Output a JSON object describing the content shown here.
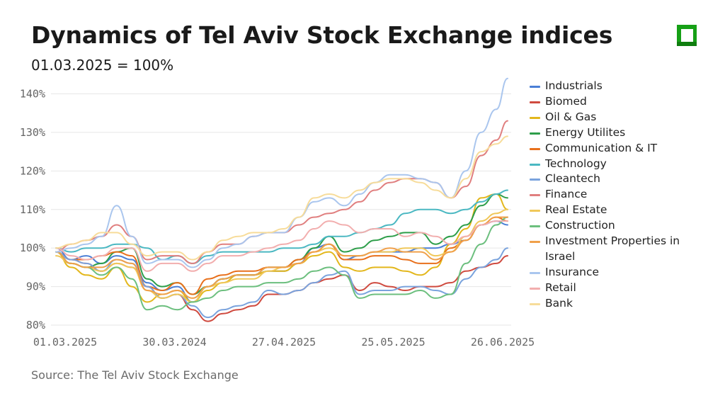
{
  "header": {
    "title": "Dynamics of Tel Aviv Stock Exchange indices",
    "subtitle": "01.03.2025 = 100%"
  },
  "footer": {
    "source": "Source: The Tel Aviv Stock Exchange"
  },
  "colors": {
    "grid": "#e6e6e6",
    "axis_text": "#666666",
    "logo": "#16a016"
  },
  "chart_data": {
    "type": "line",
    "title": "Dynamics of Tel Aviv Stock Exchange indices",
    "subtitle": "01.03.2025 = 100%",
    "xlabel": "",
    "ylabel": "",
    "ylim": [
      80,
      142
    ],
    "yticks": [
      80,
      90,
      100,
      110,
      120,
      130,
      140
    ],
    "ytick_labels": [
      "80%",
      "90%",
      "100%",
      "110%",
      "120%",
      "130%",
      "140%"
    ],
    "xtick_labels": [
      "01.03.2025",
      "30.03.2024",
      "27.04.2025",
      "25.05.2025",
      "26.06.2025"
    ],
    "grid": true,
    "legend_position": "right",
    "x": [
      0,
      4,
      8,
      12,
      16,
      20,
      24,
      28,
      32,
      36,
      40,
      44,
      48,
      52,
      56,
      60,
      64,
      68,
      72,
      76,
      80,
      84,
      88,
      92,
      96,
      100,
      104,
      108,
      112,
      116,
      119
    ],
    "series": [
      {
        "name": "Industrials",
        "color": "#4a7fd6",
        "values": [
          100,
          97,
          98,
          96,
          98,
          97,
          91,
          89,
          90,
          86,
          90,
          92,
          93,
          93,
          94,
          94,
          96,
          100,
          101,
          97,
          98,
          99,
          99,
          99,
          100,
          100,
          101,
          102,
          106,
          107,
          106
        ]
      },
      {
        "name": "Biomed",
        "color": "#cf4a3f",
        "values": [
          99,
          97,
          96,
          94,
          96,
          95,
          90,
          87,
          88,
          84,
          81,
          83,
          84,
          85,
          88,
          88,
          89,
          91,
          92,
          93,
          89,
          91,
          90,
          89,
          90,
          90,
          91,
          94,
          95,
          96,
          98
        ]
      },
      {
        "name": "Oil & Gas",
        "color": "#e3b71c",
        "values": [
          99,
          95,
          93,
          92,
          95,
          90,
          86,
          88,
          89,
          86,
          89,
          91,
          93,
          93,
          94,
          94,
          96,
          98,
          99,
          95,
          94,
          95,
          95,
          94,
          93,
          95,
          101,
          105,
          113,
          114,
          110
        ]
      },
      {
        "name": "Energy Utilites",
        "color": "#2e9e4a",
        "values": [
          99,
          96,
          95,
          96,
          99,
          100,
          92,
          90,
          91,
          88,
          90,
          92,
          93,
          93,
          95,
          95,
          97,
          100,
          103,
          99,
          100,
          102,
          103,
          104,
          104,
          101,
          103,
          106,
          111,
          114,
          113
        ]
      },
      {
        "name": "Communication & IT",
        "color": "#e8701c",
        "values": [
          99,
          97,
          97,
          98,
          99,
          98,
          90,
          89,
          91,
          88,
          92,
          93,
          94,
          94,
          95,
          95,
          97,
          99,
          101,
          97,
          97,
          98,
          98,
          97,
          96,
          96,
          100,
          102,
          106,
          108,
          107
        ]
      },
      {
        "name": "Technology",
        "color": "#4bb8c2",
        "values": [
          100,
          99,
          100,
          100,
          101,
          101,
          100,
          97,
          98,
          96,
          98,
          99,
          99,
          99,
          99,
          100,
          100,
          101,
          103,
          103,
          104,
          105,
          106,
          109,
          110,
          110,
          109,
          110,
          112,
          114,
          115
        ]
      },
      {
        "name": "Cleantech",
        "color": "#7aa3dd",
        "values": [
          99,
          97,
          96,
          94,
          97,
          96,
          90,
          87,
          88,
          85,
          82,
          84,
          85,
          86,
          89,
          88,
          89,
          91,
          93,
          94,
          88,
          89,
          89,
          90,
          90,
          89,
          88,
          92,
          95,
          97,
          100
        ]
      },
      {
        "name": "Finance",
        "color": "#e07f7f",
        "values": [
          99,
          101,
          102,
          103,
          106,
          103,
          97,
          98,
          98,
          96,
          99,
          101,
          101,
          103,
          104,
          104,
          106,
          108,
          109,
          110,
          112,
          115,
          117,
          118,
          118,
          117,
          113,
          116,
          124,
          128,
          133
        ]
      },
      {
        "name": "Real Estate",
        "color": "#f0c85a",
        "values": [
          98,
          96,
          95,
          94,
          96,
          95,
          89,
          87,
          88,
          86,
          90,
          91,
          92,
          92,
          94,
          95,
          96,
          99,
          100,
          98,
          98,
          99,
          99,
          100,
          100,
          98,
          99,
          103,
          107,
          109,
          110
        ]
      },
      {
        "name": "Construction",
        "color": "#6cbf7e",
        "values": [
          99,
          96,
          95,
          93,
          95,
          92,
          84,
          85,
          84,
          86,
          87,
          89,
          90,
          90,
          91,
          91,
          92,
          94,
          95,
          93,
          87,
          88,
          88,
          88,
          89,
          87,
          88,
          96,
          101,
          106,
          108
        ]
      },
      {
        "name": "Investment Properties in Israel",
        "color": "#f0a04a",
        "values": [
          99,
          96,
          95,
          95,
          97,
          96,
          89,
          88,
          89,
          87,
          90,
          92,
          93,
          93,
          95,
          95,
          96,
          99,
          101,
          98,
          98,
          99,
          100,
          99,
          99,
          97,
          99,
          102,
          106,
          108,
          108
        ]
      },
      {
        "name": "Insurance",
        "color": "#aac6ee",
        "values": [
          99,
          100,
          101,
          103,
          111,
          103,
          96,
          97,
          97,
          95,
          97,
          100,
          101,
          103,
          104,
          104,
          108,
          112,
          113,
          111,
          114,
          117,
          119,
          119,
          118,
          117,
          113,
          120,
          130,
          136,
          144
        ]
      },
      {
        "name": "Retail",
        "color": "#f2aeae",
        "values": [
          100,
          98,
          97,
          98,
          100,
          100,
          94,
          96,
          96,
          94,
          96,
          98,
          98,
          99,
          100,
          101,
          102,
          105,
          107,
          106,
          104,
          105,
          105,
          103,
          104,
          103,
          101,
          103,
          106,
          107,
          107
        ]
      },
      {
        "name": "Bank",
        "color": "#f7dc9a",
        "values": [
          100,
          101,
          102,
          104,
          104,
          101,
          98,
          99,
          99,
          97,
          99,
          102,
          103,
          104,
          104,
          105,
          108,
          113,
          114,
          113,
          115,
          117,
          118,
          118,
          117,
          115,
          113,
          118,
          125,
          127,
          129
        ]
      }
    ]
  }
}
